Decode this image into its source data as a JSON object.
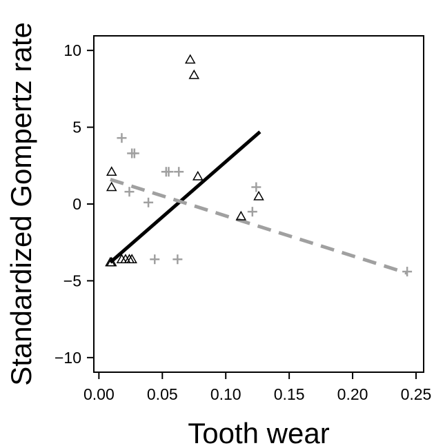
{
  "chart_data": {
    "type": "scatter",
    "xlabel": "Tooth wear",
    "ylabel": "Standardized Gompertz rate",
    "xlim": [
      -0.004,
      0.256
    ],
    "ylim": [
      -10.95,
      10.95
    ],
    "x_ticks": [
      0.0,
      0.05,
      0.1,
      0.15,
      0.2,
      0.25
    ],
    "x_tick_labels": [
      "0.00",
      "0.05",
      "0.10",
      "0.15",
      "0.20",
      "0.25"
    ],
    "y_ticks": [
      10,
      5,
      0,
      -5,
      -10
    ],
    "y_tick_labels": [
      "10",
      "5",
      "0",
      "−5",
      "−10"
    ],
    "grid": false,
    "series": [
      {
        "marker": "triangle",
        "color": "#000000",
        "x": [
          0.072,
          0.075,
          0.01,
          0.01,
          0.078,
          0.126,
          0.112,
          0.009,
          0.01,
          0.018,
          0.021,
          0.024,
          0.026
        ],
        "y": [
          9.4,
          8.4,
          2.1,
          1.1,
          1.8,
          0.5,
          -0.8,
          -3.8,
          -3.8,
          -3.6,
          -3.6,
          -3.6,
          -3.6
        ]
      },
      {
        "marker": "plus",
        "color": "#a0a0a0",
        "x": [
          0.018,
          0.026,
          0.028,
          0.053,
          0.055,
          0.063,
          0.024,
          0.039,
          0.044,
          0.062,
          0.124,
          0.121,
          0.243
        ],
        "y": [
          4.3,
          3.3,
          3.3,
          2.1,
          2.1,
          2.1,
          0.8,
          0.1,
          -3.6,
          -3.6,
          1.1,
          -0.5,
          -4.4
        ]
      }
    ],
    "fit_lines": [
      {
        "style": "solid",
        "color": "#000000",
        "x": [
          0.009,
          0.127
        ],
        "y": [
          -3.8,
          4.7
        ]
      },
      {
        "style": "dashed",
        "color": "#a0a0a0",
        "x": [
          0.009,
          0.243
        ],
        "y": [
          1.6,
          -4.5
        ]
      }
    ]
  }
}
